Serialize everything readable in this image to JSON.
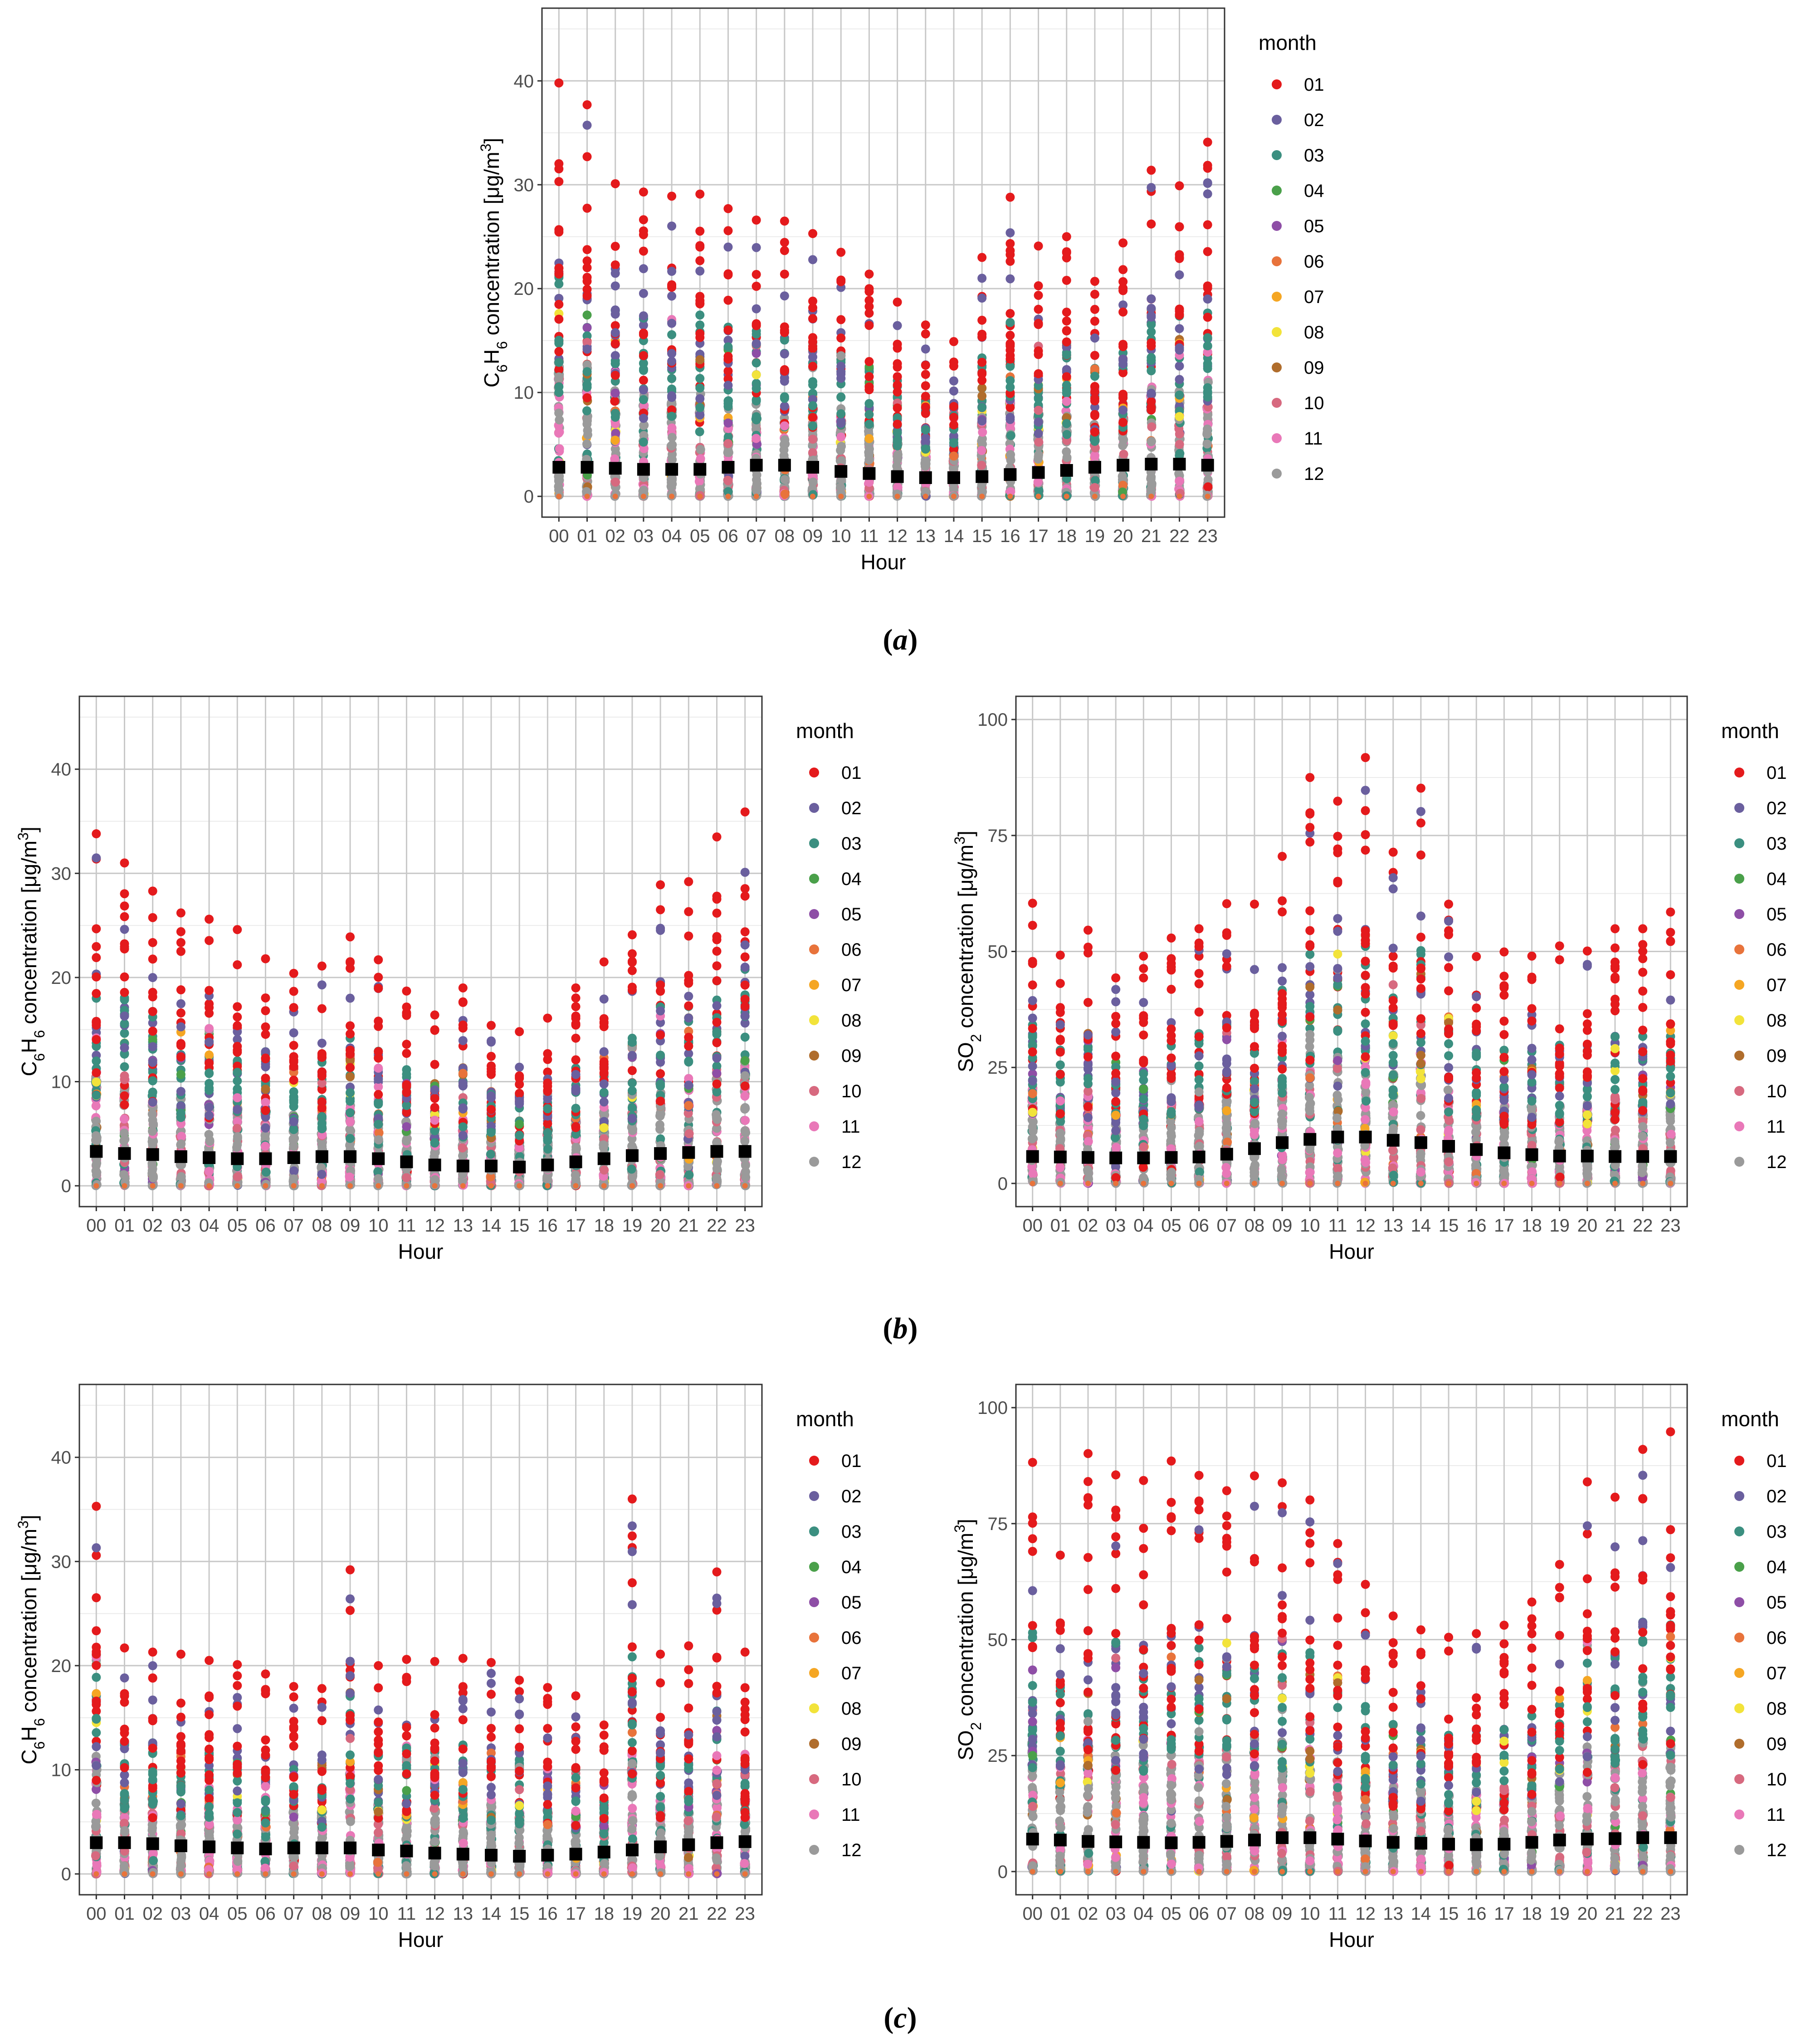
{
  "figure": {
    "captions": [
      "(a)",
      "(b)",
      "(c)"
    ],
    "caption_parts": [
      {
        "open": "(",
        "letter": "a",
        "close": ")"
      },
      {
        "open": "(",
        "letter": "b",
        "close": ")"
      },
      {
        "open": "(",
        "letter": "c",
        "close": ")"
      }
    ]
  },
  "colors": {
    "panel_border": "#333333",
    "grid_major": "#c8c8c8",
    "grid_minor": "#ebebeb",
    "mean_marker": "#000000"
  },
  "legend": {
    "title": "month",
    "entries": [
      "01",
      "02",
      "03",
      "04",
      "05",
      "06",
      "07",
      "08",
      "09",
      "10",
      "11",
      "12"
    ],
    "colors": [
      "#e41a1c",
      "#6a5f9e",
      "#3b8f80",
      "#4aa04a",
      "#8e4ea6",
      "#e8733b",
      "#f5a623",
      "#f2e33a",
      "#b06d2c",
      "#d7697f",
      "#e978b8",
      "#9a9a9a"
    ]
  },
  "chart_data": [
    {
      "id": "a",
      "type": "scatter",
      "title": "",
      "xlabel": "Hour",
      "ylabel": {
        "base": "C",
        "sub1": "6",
        "mid": "H",
        "sub2": "6",
        "rest": " concentration [μg/m",
        "sup": "3",
        "end": "]"
      },
      "x": [
        "00",
        "01",
        "02",
        "03",
        "04",
        "05",
        "06",
        "07",
        "08",
        "09",
        "10",
        "11",
        "12",
        "13",
        "14",
        "15",
        "16",
        "17",
        "18",
        "19",
        "20",
        "21",
        "22",
        "23"
      ],
      "ylim": [
        -2,
        47
      ],
      "yticks": [
        0,
        10,
        20,
        30,
        40
      ],
      "yticklabels": [
        "0",
        "10",
        "20",
        "30",
        "40"
      ],
      "mean": [
        2.8,
        2.8,
        2.7,
        2.6,
        2.6,
        2.6,
        2.8,
        3.0,
        3.0,
        2.8,
        2.4,
        2.2,
        1.9,
        1.8,
        1.8,
        1.9,
        2.1,
        2.3,
        2.5,
        2.8,
        3.0,
        3.1,
        3.1,
        3.0
      ],
      "max": [
        39.8,
        37.7,
        30.1,
        29.3,
        28.9,
        29.1,
        27.7,
        26.6,
        26.5,
        25.3,
        23.5,
        21.4,
        18.7,
        16.5,
        14.9,
        23.0,
        28.8,
        24.1,
        25.0,
        20.7,
        24.4,
        31.4,
        29.9,
        34.1
      ]
    },
    {
      "id": "b-left",
      "type": "scatter",
      "title": "",
      "xlabel": "Hour",
      "ylabel": {
        "base": "C",
        "sub1": "6",
        "mid": "H",
        "sub2": "6",
        "rest": " concentration [μg/m",
        "sup": "3",
        "end": "]"
      },
      "x": [
        "00",
        "01",
        "02",
        "03",
        "04",
        "05",
        "06",
        "07",
        "08",
        "09",
        "10",
        "11",
        "12",
        "13",
        "14",
        "15",
        "16",
        "17",
        "18",
        "19",
        "20",
        "21",
        "22",
        "23"
      ],
      "ylim": [
        -2,
        47
      ],
      "yticks": [
        0,
        10,
        20,
        30,
        40
      ],
      "yticklabels": [
        "0",
        "10",
        "20",
        "30",
        "40"
      ],
      "mean": [
        3.3,
        3.1,
        3.0,
        2.8,
        2.7,
        2.6,
        2.6,
        2.7,
        2.8,
        2.8,
        2.6,
        2.3,
        2.0,
        1.9,
        1.9,
        1.8,
        2.0,
        2.3,
        2.6,
        2.9,
        3.1,
        3.2,
        3.3,
        3.3
      ],
      "max": [
        33.8,
        31.0,
        28.3,
        26.2,
        25.6,
        24.6,
        21.8,
        20.4,
        21.1,
        23.9,
        21.7,
        18.7,
        16.4,
        19.0,
        15.4,
        14.8,
        16.1,
        19.0,
        21.5,
        24.1,
        28.9,
        29.2,
        33.5,
        35.9
      ]
    },
    {
      "id": "b-right",
      "type": "scatter",
      "title": "",
      "xlabel": "Hour",
      "ylabel": {
        "base": "SO",
        "sub1": "2",
        "mid": "",
        "sub2": "",
        "rest": " concentration [μg/m",
        "sup": "3",
        "end": "]"
      },
      "x": [
        "00",
        "01",
        "02",
        "03",
        "04",
        "05",
        "06",
        "07",
        "08",
        "09",
        "10",
        "11",
        "12",
        "13",
        "14",
        "15",
        "16",
        "17",
        "18",
        "19",
        "20",
        "21",
        "22",
        "23"
      ],
      "ylim": [
        -5,
        105
      ],
      "yticks": [
        0,
        25,
        50,
        75,
        100
      ],
      "yticklabels": [
        "0",
        "25",
        "50",
        "75",
        "100"
      ],
      "mean": [
        5.8,
        5.7,
        5.6,
        5.5,
        5.5,
        5.6,
        5.7,
        6.3,
        7.5,
        8.8,
        9.5,
        10.0,
        10.0,
        9.3,
        8.8,
        8.0,
        7.3,
        6.6,
        6.2,
        5.9,
        5.9,
        5.8,
        5.8,
        5.8
      ],
      "max": [
        60.4,
        49.2,
        54.6,
        44.3,
        49.0,
        52.9,
        54.9,
        60.3,
        60.2,
        70.5,
        87.5,
        82.4,
        91.8,
        71.4,
        85.2,
        60.2,
        48.9,
        49.9,
        49.0,
        51.2,
        50.1,
        54.9,
        54.9,
        58.5
      ]
    },
    {
      "id": "c-left",
      "type": "scatter",
      "title": "",
      "xlabel": "Hour",
      "ylabel": {
        "base": "C",
        "sub1": "6",
        "mid": "H",
        "sub2": "6",
        "rest": " concentration [μg/m",
        "sup": "3",
        "end": "]"
      },
      "x": [
        "00",
        "01",
        "02",
        "03",
        "04",
        "05",
        "06",
        "07",
        "08",
        "09",
        "10",
        "11",
        "12",
        "13",
        "14",
        "15",
        "16",
        "17",
        "18",
        "19",
        "20",
        "21",
        "22",
        "23"
      ],
      "ylim": [
        -2,
        47
      ],
      "yticks": [
        0,
        10,
        20,
        30,
        40
      ],
      "yticklabels": [
        "0",
        "10",
        "20",
        "30",
        "40"
      ],
      "mean": [
        3.0,
        3.0,
        2.9,
        2.7,
        2.6,
        2.5,
        2.4,
        2.5,
        2.5,
        2.5,
        2.3,
        2.2,
        2.0,
        1.9,
        1.8,
        1.7,
        1.8,
        1.9,
        2.1,
        2.3,
        2.6,
        2.8,
        3.0,
        3.1
      ],
      "max": [
        35.3,
        21.7,
        21.3,
        21.1,
        20.5,
        20.1,
        19.2,
        18.0,
        17.8,
        29.2,
        20.0,
        20.6,
        20.4,
        20.7,
        20.3,
        18.6,
        17.9,
        17.1,
        14.3,
        36.0,
        21.1,
        21.9,
        29.0,
        21.3
      ]
    },
    {
      "id": "c-right",
      "type": "scatter",
      "title": "",
      "xlabel": "Hour",
      "ylabel": {
        "base": "SO",
        "sub1": "2",
        "mid": "",
        "sub2": "",
        "rest": " concentration [μg/m",
        "sup": "3",
        "end": "]"
      },
      "x": [
        "00",
        "01",
        "02",
        "03",
        "04",
        "05",
        "06",
        "07",
        "08",
        "09",
        "10",
        "11",
        "12",
        "13",
        "14",
        "15",
        "16",
        "17",
        "18",
        "19",
        "20",
        "21",
        "22",
        "23"
      ],
      "ylim": [
        -5,
        105
      ],
      "yticks": [
        0,
        25,
        50,
        75,
        100
      ],
      "yticklabels": [
        "0",
        "25",
        "50",
        "75",
        "100"
      ],
      "mean": [
        7.0,
        6.8,
        6.5,
        6.4,
        6.3,
        6.2,
        6.3,
        6.5,
        6.8,
        7.3,
        7.3,
        7.0,
        6.6,
        6.3,
        6.1,
        5.9,
        5.8,
        5.9,
        6.3,
        6.8,
        7.0,
        7.1,
        7.3,
        7.3
      ],
      "max": [
        88.2,
        68.2,
        90.1,
        85.5,
        84.3,
        88.5,
        85.4,
        82.1,
        85.3,
        83.8,
        80.1,
        70.7,
        61.9,
        55.1,
        52.1,
        50.5,
        51.3,
        53.1,
        58.1,
        66.2,
        84.0,
        80.7,
        91.0,
        94.8
      ]
    }
  ]
}
